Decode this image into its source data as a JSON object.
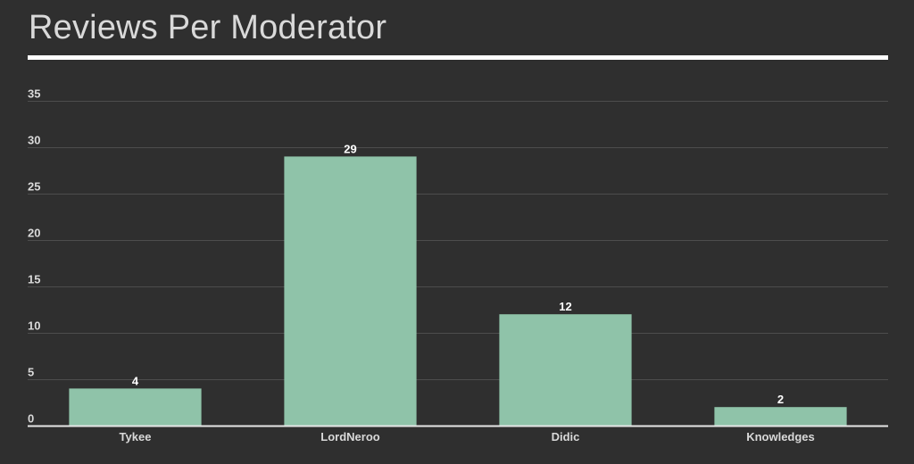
{
  "chart_data": {
    "type": "bar",
    "title": "Reviews Per Moderator",
    "xlabel": "",
    "ylabel": "",
    "categories": [
      "Tykee",
      "LordNeroo",
      "Didic",
      "Knowledges"
    ],
    "values": [
      4,
      29,
      12,
      2
    ],
    "ylim": [
      0,
      35
    ],
    "yticks": [
      0,
      5,
      10,
      15,
      20,
      25,
      30,
      35
    ],
    "data_labels": true,
    "grid": true,
    "legend": "none",
    "colors": {
      "background": "#2f2f2f",
      "bar": "#8fc3a9",
      "title": "#d9d9d9",
      "tick_text": "#d9d9d9",
      "data_label": "#ffffff",
      "grid": "#4d4d4d",
      "axis": "#e6e6e6"
    }
  }
}
